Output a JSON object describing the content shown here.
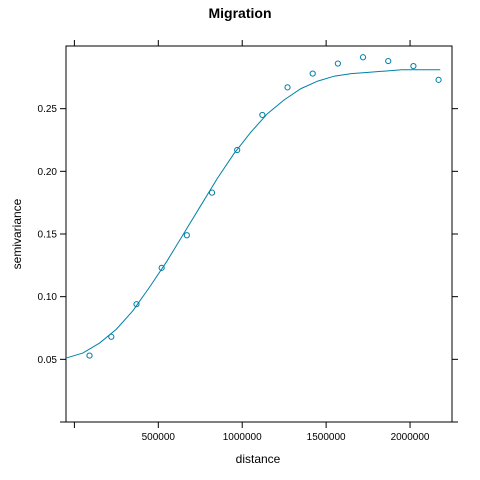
{
  "chart_data": {
    "type": "scatter",
    "title": "Migration",
    "xlabel": "distance",
    "ylabel": "semivariance",
    "xlim": [
      -50000,
      2250000
    ],
    "ylim": [
      0,
      0.3
    ],
    "xticks": [
      0,
      500000,
      1000000,
      1500000,
      2000000
    ],
    "xtick_labels": [
      "",
      "500000",
      "1000000",
      "1500000",
      "2000000"
    ],
    "yticks": [
      0,
      0.05,
      0.1,
      0.15,
      0.2,
      0.25
    ],
    "ytick_labels": [
      "",
      "0.05",
      "0.10",
      "0.15",
      "0.20",
      "0.25"
    ],
    "grid": false,
    "colors": {
      "series": "#0080a8",
      "axis": "#000000"
    },
    "points": {
      "x": [
        90000,
        220000,
        370000,
        520000,
        670000,
        820000,
        970000,
        1120000,
        1270000,
        1420000,
        1570000,
        1720000,
        1870000,
        2020000,
        2170000
      ],
      "y": [
        0.053,
        0.068,
        0.094,
        0.123,
        0.149,
        0.183,
        0.217,
        0.245,
        0.267,
        0.278,
        0.286,
        0.291,
        0.288,
        0.284,
        0.273
      ]
    },
    "fitted_curve": {
      "x": [
        -50000,
        50000,
        150000,
        250000,
        350000,
        450000,
        550000,
        650000,
        750000,
        850000,
        950000,
        1050000,
        1150000,
        1250000,
        1350000,
        1450000,
        1550000,
        1650000,
        1750000,
        1850000,
        1950000,
        2050000,
        2180000
      ],
      "y": [
        0.051,
        0.055,
        0.063,
        0.074,
        0.089,
        0.108,
        0.128,
        0.15,
        0.172,
        0.194,
        0.214,
        0.231,
        0.246,
        0.257,
        0.266,
        0.272,
        0.276,
        0.278,
        0.279,
        0.28,
        0.281,
        0.281,
        0.281
      ]
    }
  }
}
